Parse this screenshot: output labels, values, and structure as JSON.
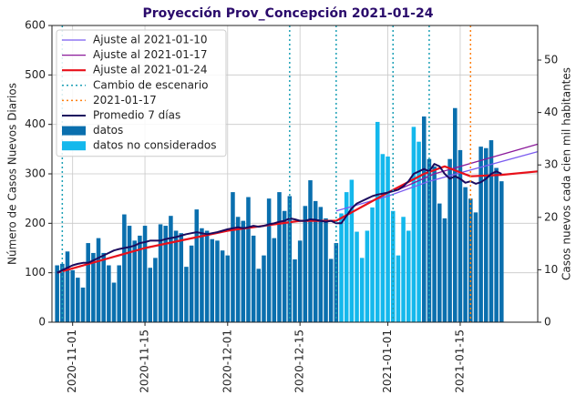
{
  "chart_data": {
    "type": "bar",
    "title": "Proyección Prov_Concepción 2021-01-24",
    "ylabel": "Número de Casos Nuevos Diarios",
    "y2label": "Casos nuevos cada cien mil habitantes",
    "xlim": [
      "2020-10-28",
      "2021-01-30"
    ],
    "xticks": [
      "2020-11-01",
      "2020-11-15",
      "2020-12-01",
      "2020-12-15",
      "2021-01-01",
      "2021-01-15"
    ],
    "ylim": [
      0,
      600
    ],
    "yticks": [
      0,
      100,
      200,
      300,
      400,
      500,
      600
    ],
    "y2lim": [
      0,
      56.6
    ],
    "y2ticks": [
      0,
      10,
      20,
      30,
      40,
      50
    ],
    "grid": true,
    "legend": "upper left",
    "x": [
      "2020-10-29",
      "2020-10-30",
      "2020-10-31",
      "2020-11-01",
      "2020-11-02",
      "2020-11-03",
      "2020-11-04",
      "2020-11-05",
      "2020-11-06",
      "2020-11-07",
      "2020-11-08",
      "2020-11-09",
      "2020-11-10",
      "2020-11-11",
      "2020-11-12",
      "2020-11-13",
      "2020-11-14",
      "2020-11-15",
      "2020-11-16",
      "2020-11-17",
      "2020-11-18",
      "2020-11-19",
      "2020-11-20",
      "2020-11-21",
      "2020-11-22",
      "2020-11-23",
      "2020-11-24",
      "2020-11-25",
      "2020-11-26",
      "2020-11-27",
      "2020-11-28",
      "2020-11-29",
      "2020-11-30",
      "2020-12-01",
      "2020-12-02",
      "2020-12-03",
      "2020-12-04",
      "2020-12-05",
      "2020-12-06",
      "2020-12-07",
      "2020-12-08",
      "2020-12-09",
      "2020-12-10",
      "2020-12-11",
      "2020-12-12",
      "2020-12-13",
      "2020-12-14",
      "2020-12-15",
      "2020-12-16",
      "2020-12-17",
      "2020-12-18",
      "2020-12-19",
      "2020-12-20",
      "2020-12-21",
      "2020-12-22",
      "2020-12-23",
      "2020-12-24",
      "2020-12-25",
      "2020-12-26",
      "2020-12-27",
      "2020-12-28",
      "2020-12-29",
      "2020-12-30",
      "2020-12-31",
      "2021-01-01",
      "2021-01-02",
      "2021-01-03",
      "2021-01-04",
      "2021-01-05",
      "2021-01-06",
      "2021-01-07",
      "2021-01-08",
      "2021-01-09",
      "2021-01-10",
      "2021-01-11",
      "2021-01-12",
      "2021-01-13",
      "2021-01-14",
      "2021-01-15",
      "2021-01-16",
      "2021-01-17",
      "2021-01-18",
      "2021-01-19",
      "2021-01-20",
      "2021-01-21",
      "2021-01-22",
      "2021-01-23"
    ],
    "series": [
      {
        "name": "Ajuste al 2021-01-10",
        "type": "line",
        "color": "#7b5cf0",
        "width": 1.3,
        "x": [
          "2020-12-22",
          "2021-01-01",
          "2021-01-09",
          "2021-01-30"
        ],
        "values": [
          225,
          255,
          285,
          345
        ]
      },
      {
        "name": "Ajuste al 2021-01-17",
        "type": "line",
        "color": "#8b1a9b",
        "width": 1.3,
        "x": [
          "2021-01-03",
          "2021-01-10",
          "2021-01-30"
        ],
        "values": [
          268,
          300,
          360
        ]
      },
      {
        "name": "Ajuste al 2021-01-24",
        "type": "line",
        "color": "#e8101a",
        "width": 2.2,
        "x": [
          "2020-10-29",
          "2020-11-15",
          "2020-12-01",
          "2020-12-15",
          "2020-12-22",
          "2021-01-01",
          "2021-01-08",
          "2021-01-12",
          "2021-01-17",
          "2021-01-23",
          "2021-01-30"
        ],
        "values": [
          100,
          150,
          185,
          205,
          205,
          262,
          300,
          315,
          295,
          298,
          305
        ]
      },
      {
        "name": "Cambio de escenario",
        "type": "vline",
        "color": "#1a9fb5",
        "x": [
          "2020-10-30",
          "2020-12-13",
          "2020-12-22",
          "2021-01-02",
          "2021-01-09"
        ]
      },
      {
        "name": "2021-01-17",
        "type": "vline",
        "color": "#ff7f0e",
        "x": [
          "2021-01-17"
        ]
      },
      {
        "name": "Promedio 7 días",
        "type": "line",
        "color": "#1c0b5e",
        "width": 2,
        "values": [
          100,
          105,
          110,
          115,
          118,
          120,
          120,
          125,
          130,
          135,
          140,
          145,
          148,
          150,
          152,
          155,
          160,
          162,
          165,
          165,
          165,
          168,
          170,
          172,
          175,
          178,
          180,
          182,
          180,
          178,
          180,
          182,
          185,
          188,
          190,
          192,
          190,
          192,
          195,
          193,
          195,
          198,
          200,
          203,
          205,
          210,
          208,
          205,
          205,
          208,
          207,
          205,
          203,
          205,
          200,
          200,
          215,
          230,
          240,
          245,
          250,
          255,
          258,
          260,
          262,
          265,
          268,
          275,
          285,
          300,
          305,
          310,
          305,
          320,
          315,
          300,
          290,
          295,
          290,
          282,
          285,
          280,
          283,
          290,
          300,
          305,
          300
        ]
      },
      {
        "name": "datos",
        "type": "bar",
        "color": "#0a6fae",
        "values": [
          115,
          118,
          143,
          105,
          90,
          70,
          160,
          140,
          170,
          140,
          115,
          80,
          115,
          218,
          195,
          165,
          175,
          195,
          110,
          130,
          198,
          195,
          215,
          185,
          180,
          112,
          155,
          228,
          190,
          185,
          168,
          165,
          145,
          135,
          263,
          213,
          205,
          253,
          175,
          108,
          135,
          250,
          170,
          263,
          225,
          255,
          127,
          165,
          235,
          287,
          245,
          233,
          210,
          128,
          160,
          null,
          null,
          null,
          null,
          null,
          null,
          null,
          null,
          null,
          null,
          null,
          null,
          null,
          null,
          null,
          null,
          416,
          330,
          315,
          240,
          210,
          330,
          433,
          348,
          273,
          250,
          222,
          355,
          352,
          368,
          312,
          285
        ]
      },
      {
        "name": "datos no considerados",
        "type": "bar",
        "color": "#14b8ec",
        "values": [
          null,
          null,
          null,
          null,
          null,
          null,
          null,
          null,
          null,
          null,
          null,
          null,
          null,
          null,
          null,
          null,
          null,
          null,
          null,
          null,
          null,
          null,
          null,
          null,
          null,
          null,
          null,
          null,
          null,
          null,
          null,
          null,
          null,
          null,
          null,
          null,
          null,
          null,
          null,
          null,
          null,
          null,
          null,
          null,
          null,
          null,
          null,
          null,
          null,
          null,
          null,
          null,
          null,
          null,
          null,
          220,
          263,
          288,
          183,
          130,
          185,
          232,
          405,
          340,
          335,
          225,
          135,
          213,
          185,
          395,
          365,
          null,
          null,
          null,
          null,
          null,
          null,
          null,
          null,
          null,
          null,
          null,
          null,
          null,
          null,
          null,
          null
        ]
      }
    ]
  }
}
